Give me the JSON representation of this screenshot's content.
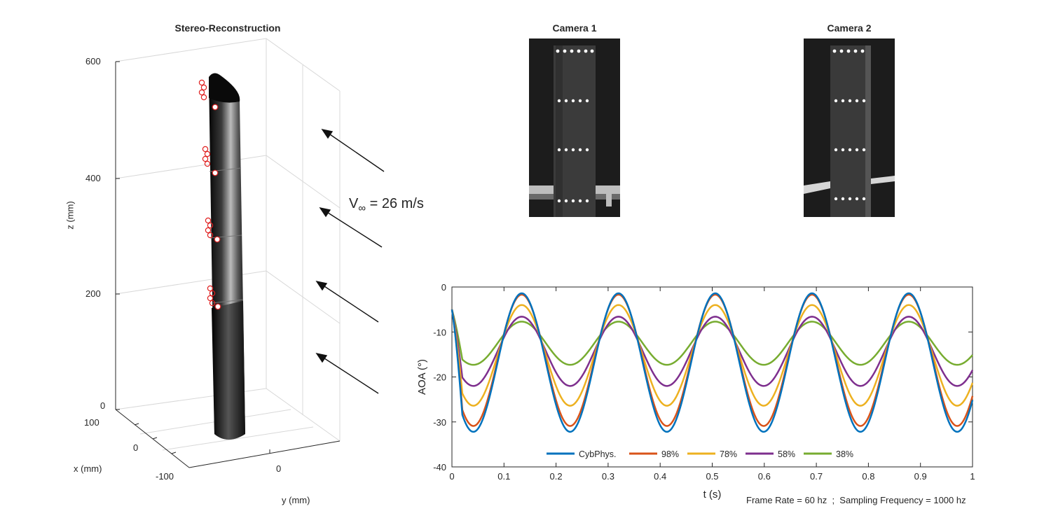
{
  "stereo": {
    "title": "Stereo-Reconstruction",
    "zlabel": "z (mm)",
    "xlabel": "x (mm)",
    "ylabel": "y (mm)",
    "zticks": [
      "600",
      "400",
      "200",
      "0"
    ],
    "xticks": [
      "100",
      "0",
      "-100"
    ],
    "yticks": [
      "0"
    ],
    "velocity_label": "V",
    "velocity_sub": "∞",
    "velocity_value": "= 26 m/s",
    "marker_color": "#e02020"
  },
  "cameras": {
    "cam1_title": "Camera 1",
    "cam2_title": "Camera 2"
  },
  "footer": "Frame Rate = 60 hz  ;  Sampling Frequency = 1000 hz",
  "chart_data": {
    "type": "line",
    "xlabel": "t (s)",
    "ylabel": "AOA (°)",
    "xlim": [
      0,
      1
    ],
    "ylim": [
      -40,
      0
    ],
    "xticks": [
      0,
      0.1,
      0.2,
      0.3,
      0.4,
      0.5,
      0.6,
      0.7,
      0.8,
      0.9,
      1
    ],
    "yticks": [
      0,
      -10,
      -20,
      -30,
      -40
    ],
    "grid": false,
    "legend_position": "bottom",
    "frequency_hz": 5.38,
    "series": [
      {
        "name": "CybPhys.",
        "color": "#0072BD",
        "mean": -16.8,
        "amplitude": 15.4
      },
      {
        "name": "98%",
        "color": "#D95319",
        "mean": -16.3,
        "amplitude": 14.6
      },
      {
        "name": "78%",
        "color": "#EDB120",
        "mean": -15.2,
        "amplitude": 11.2
      },
      {
        "name": "58%",
        "color": "#7E2F8E",
        "mean": -14.3,
        "amplitude": 7.7
      },
      {
        "name": "38%",
        "color": "#77AC30",
        "mean": -12.5,
        "amplitude": 4.8
      }
    ]
  }
}
